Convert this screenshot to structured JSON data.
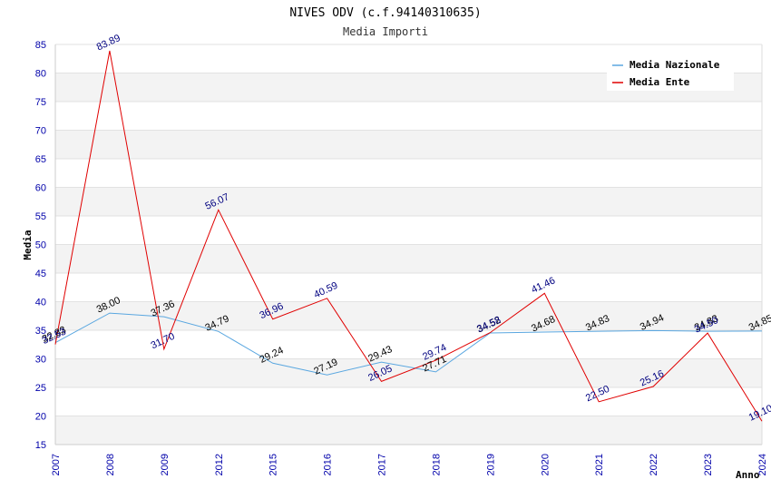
{
  "chart_data": {
    "type": "line",
    "title": "NIVES ODV (c.f.94140310635)",
    "subtitle": "Media Importi",
    "xlabel": "Anno",
    "ylabel": "Media",
    "ylim": [
      15,
      85
    ],
    "yticks": [
      15,
      20,
      25,
      30,
      35,
      40,
      45,
      50,
      55,
      60,
      65,
      70,
      75,
      80,
      85
    ],
    "categories": [
      "2007",
      "2008",
      "2009",
      "2012",
      "2015",
      "2016",
      "2017",
      "2018",
      "2019",
      "2020",
      "2021",
      "2022",
      "2023",
      "2024"
    ],
    "series": [
      {
        "name": "Media Nazionale",
        "color": "#5aa7e0",
        "label_color": "#000000",
        "values": [
          32.83,
          38.0,
          37.36,
          34.79,
          29.24,
          27.19,
          29.43,
          27.71,
          34.52,
          34.68,
          34.83,
          34.94,
          34.83,
          34.85
        ]
      },
      {
        "name": "Media Ente",
        "color": "#e00000",
        "label_color": "#000080",
        "values": [
          32.53,
          83.89,
          31.7,
          56.07,
          36.96,
          40.59,
          26.05,
          29.74,
          34.58,
          41.46,
          22.5,
          25.16,
          34.5,
          19.1
        ]
      }
    ],
    "grid": true,
    "legend_position": "top-right"
  }
}
